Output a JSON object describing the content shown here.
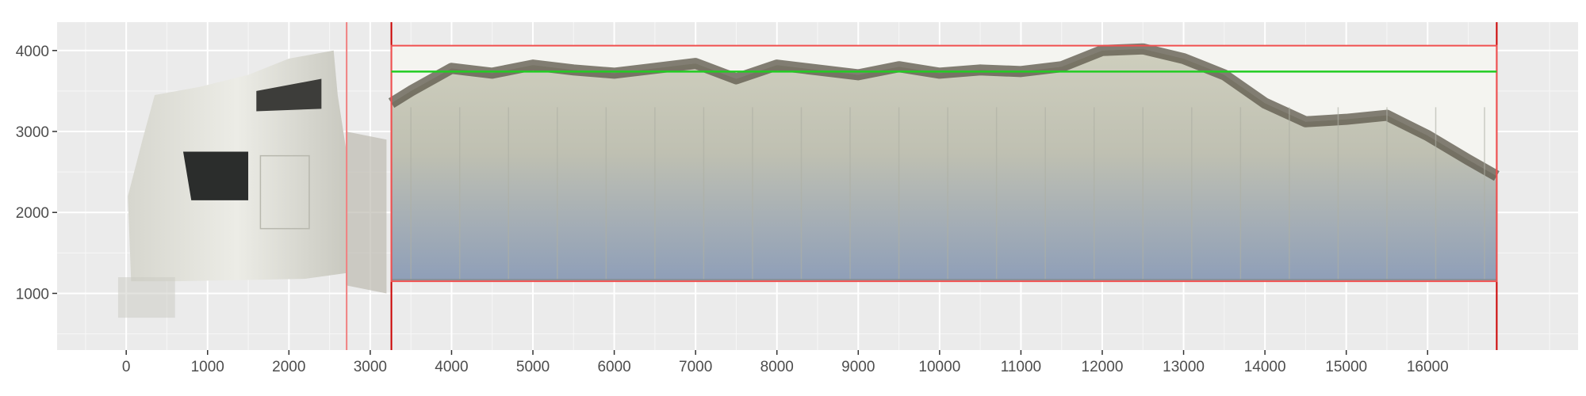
{
  "chart_data": {
    "type": "scatter",
    "title": "",
    "xlabel": "",
    "ylabel": "",
    "xlim": [
      -850,
      17850
    ],
    "ylim": [
      300,
      4350
    ],
    "grid": true,
    "x_ticks": [
      0,
      1000,
      2000,
      3000,
      4000,
      5000,
      6000,
      7000,
      8000,
      9000,
      10000,
      11000,
      12000,
      13000,
      14000,
      15000,
      16000
    ],
    "y_ticks": [
      1000,
      2000,
      3000,
      4000
    ],
    "vertical_lines": [
      {
        "x": 2710,
        "color": "#f08080"
      },
      {
        "x": 3260,
        "color": "#cc0000"
      },
      {
        "x": 16850,
        "color": "#cc0000"
      }
    ],
    "bounding_box": {
      "x_min": 3260,
      "x_max": 16850,
      "y_min": 1150,
      "y_max": 4060,
      "color": "#f05050"
    },
    "fill_level_line": {
      "x_start": 3260,
      "x_end": 16850,
      "y": 3740,
      "color": "#22cc22"
    },
    "point_cloud": {
      "description_hidden": true,
      "trailer_top_profile": {
        "x": [
          3260,
          3500,
          4000,
          4500,
          5000,
          5500,
          6000,
          6500,
          7000,
          7500,
          8000,
          8500,
          9000,
          9500,
          10000,
          10500,
          11000,
          11500,
          12000,
          12500,
          13000,
          13500,
          14000,
          14500,
          15000,
          15500,
          16000,
          16500,
          16850
        ],
        "y": [
          3350,
          3500,
          3780,
          3720,
          3820,
          3760,
          3720,
          3780,
          3840,
          3650,
          3820,
          3760,
          3700,
          3800,
          3720,
          3760,
          3740,
          3800,
          4000,
          4020,
          3900,
          3700,
          3350,
          3120,
          3150,
          3200,
          2950,
          2650,
          2450
        ]
      },
      "trailer_bottom_y": 1170,
      "cab_extent": {
        "x_min": 0,
        "x_max": 3250,
        "y_min": 720,
        "y_max": 4000
      }
    }
  }
}
